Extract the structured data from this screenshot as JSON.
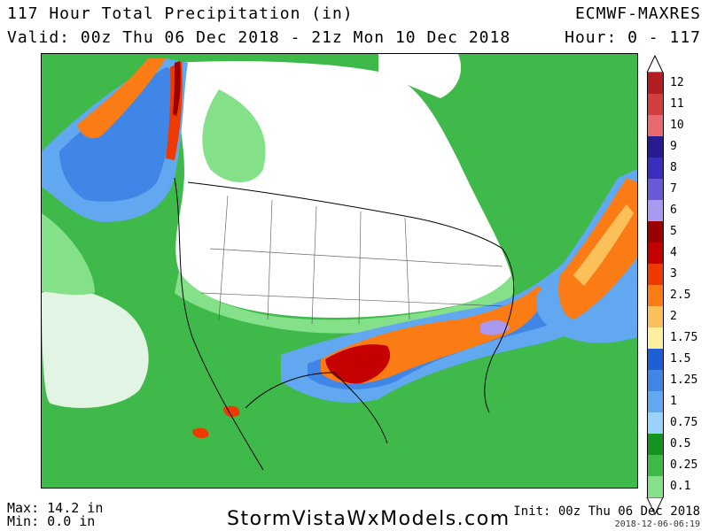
{
  "header": {
    "title": "117 Hour Total Precipitation (in)",
    "valid": "Valid: 00z Thu 06 Dec 2018 - 21z Mon 10 Dec 2018",
    "model": "ECMWF-MAXRES",
    "hour": "Hour: 0 - 117"
  },
  "legend": {
    "labels": [
      "12",
      "11",
      "10",
      "9",
      "8",
      "7",
      "6",
      "5",
      "4",
      "3",
      "2.5",
      "2",
      "1.75",
      "1.5",
      "1.25",
      "1",
      "0.75",
      "0.5",
      "0.25",
      "0.1"
    ],
    "colors": [
      "#b31d22",
      "#d23f41",
      "#e76a6f",
      "#2a1a8f",
      "#3c2dbd",
      "#6a5ad8",
      "#a99af0",
      "#9a0000",
      "#c40000",
      "#ee3a00",
      "#fb7c14",
      "#fcc05a",
      "#fff0a0",
      "#1e5fd6",
      "#3f86e6",
      "#62a8f0",
      "#9ad2fa",
      "#139322",
      "#3fb94a",
      "#85e08a"
    ]
  },
  "footer": {
    "max": "Max: 14.2 in",
    "min": "Min: 0.0 in",
    "site": "StormVistaWxModels.com",
    "init": "Init: 00z Thu 06 Dec 2018",
    "stamp": "2018-12-06-06:19"
  }
}
